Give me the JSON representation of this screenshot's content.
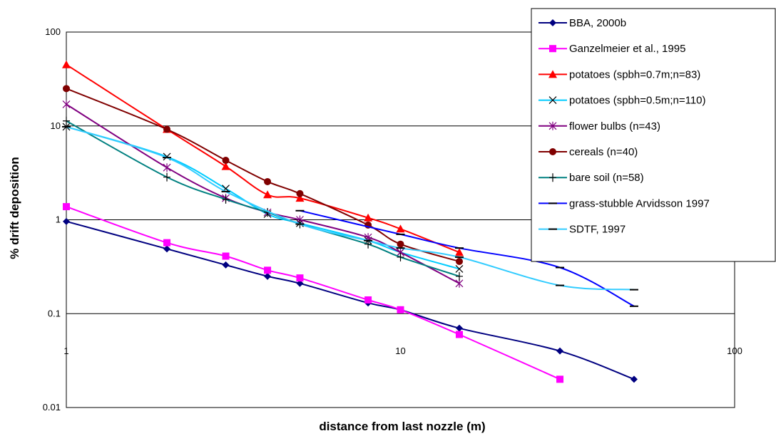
{
  "chart_data": {
    "type": "line",
    "title": "",
    "xlabel": "distance from last nozzle (m)",
    "ylabel": "% drift deposition",
    "x_scale": "log",
    "y_scale": "log",
    "xlim": [
      1,
      100
    ],
    "ylim": [
      0.01,
      100
    ],
    "x_ticks": [
      "1",
      "10",
      "100"
    ],
    "y_ticks": [
      "0.01",
      "0.1",
      "1",
      "10",
      "100"
    ],
    "grid": "horizontal major gridlines",
    "legend_position": "top-right",
    "series": [
      {
        "name": "BBA, 2000b",
        "color": "#000080",
        "marker": "diamond",
        "x": [
          1,
          2,
          3,
          4,
          5,
          8,
          10,
          15,
          30,
          50
        ],
        "y": [
          0.96,
          0.49,
          0.33,
          0.25,
          0.21,
          0.13,
          0.11,
          0.07,
          0.04,
          0.02
        ]
      },
      {
        "name": "Ganzelmeier et al., 1995",
        "color": "#FF00FF",
        "marker": "square",
        "x": [
          1,
          2,
          3,
          4,
          5,
          8,
          10,
          15,
          30
        ],
        "y": [
          1.38,
          0.57,
          0.41,
          0.29,
          0.24,
          0.14,
          0.11,
          0.06,
          0.02
        ]
      },
      {
        "name": "potatoes (spbh=0.7m;n=83)",
        "color": "#FF0000",
        "marker": "triangle",
        "x": [
          1,
          2,
          3,
          4,
          5,
          8,
          10,
          15
        ],
        "y": [
          45,
          9.2,
          3.7,
          1.85,
          1.7,
          1.05,
          0.8,
          0.45
        ]
      },
      {
        "name": "potatoes (spbh=0.5m;n=110)",
        "color": "#00CCFF",
        "marker": "x",
        "x": [
          1,
          2,
          3,
          4,
          5,
          8,
          10,
          15
        ],
        "y": [
          9.8,
          4.7,
          2.15,
          1.15,
          0.92,
          0.6,
          0.45,
          0.3
        ]
      },
      {
        "name": "flower bulbs (n=43)",
        "color": "#800080",
        "marker": "star",
        "x": [
          1,
          2,
          3,
          4,
          5,
          8,
          10,
          15
        ],
        "y": [
          17,
          3.6,
          1.7,
          1.2,
          1.0,
          0.65,
          0.45,
          0.21
        ]
      },
      {
        "name": "cereals (n=40)",
        "color": "#800000",
        "marker": "circle",
        "x": [
          1,
          2,
          3,
          4,
          5,
          8,
          10,
          15
        ],
        "y": [
          25,
          9.2,
          4.3,
          2.55,
          1.9,
          0.88,
          0.55,
          0.36
        ]
      },
      {
        "name": "bare soil (n=58)",
        "color": "#008080",
        "marker": "plus",
        "x": [
          1,
          2,
          3,
          4,
          5,
          8,
          10,
          15
        ],
        "y": [
          11.3,
          2.85,
          1.65,
          1.2,
          0.9,
          0.55,
          0.4,
          0.25
        ]
      },
      {
        "name": "grass-stubble Arvidsson 1997",
        "color": "#0000FF",
        "marker": "dash",
        "x": [
          5,
          10,
          15,
          30,
          50
        ],
        "y": [
          1.25,
          0.7,
          0.5,
          0.31,
          0.12
        ]
      },
      {
        "name": "SDTF, 1997",
        "color": "#33CCFF",
        "marker": "dash",
        "x": [
          1,
          2,
          3,
          5,
          8,
          10,
          15,
          30,
          50
        ],
        "y": [
          9.8,
          4.6,
          2.0,
          0.9,
          0.6,
          0.5,
          0.4,
          0.2,
          0.18
        ]
      }
    ]
  }
}
